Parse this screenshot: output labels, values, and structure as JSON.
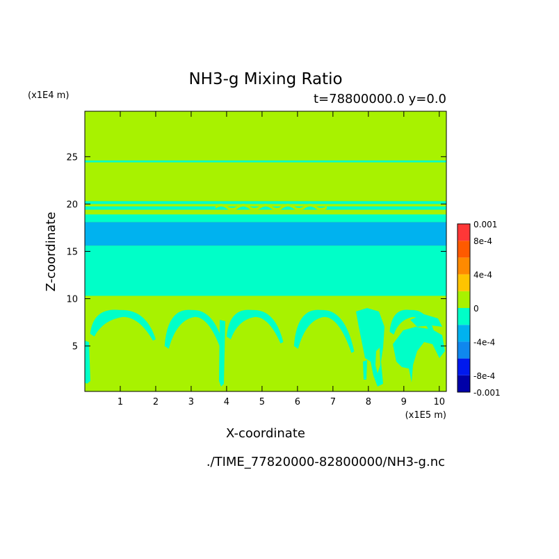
{
  "chart_data": {
    "type": "heatmap",
    "title": "NH3-g Mixing Ratio",
    "subtitle": "t=78800000.0 y=0.0",
    "xlabel": "X-coordinate",
    "ylabel": "Z-coordinate",
    "x_scale_note": "(x1E5 m)",
    "y_scale_note": "(x1E4 m)",
    "footer": "./TIME_77820000-82800000/NH3-g.nc",
    "xlim": [
      0,
      10.2
    ],
    "ylim": [
      0.2,
      29.8
    ],
    "x_ticks": [
      "1",
      "2",
      "3",
      "4",
      "5",
      "6",
      "7",
      "8",
      "9",
      "10"
    ],
    "y_ticks": [
      "5",
      "10",
      "15",
      "20",
      "25"
    ],
    "grid": false,
    "colorbar": {
      "levels": [
        -0.001,
        -0.0008,
        -0.0006,
        -0.0004,
        -0.0002,
        0,
        0.0002,
        0.0004,
        0.0006,
        0.0008,
        0.001
      ],
      "labels": [
        "0.001",
        "8e-4",
        "4e-4",
        "0",
        "-4e-4",
        "-8e-4",
        "-0.001"
      ],
      "colors": [
        "#0000a8",
        "#0019ee",
        "#0f87ee",
        "#00b2ef",
        "#00ffc8",
        "#a8f200",
        "#ffc400",
        "#ff8a00",
        "#ff5a00",
        "#ff3737"
      ]
    },
    "field": {
      "background_color": "#a8f200",
      "horizontal_bands": [
        {
          "z_bottom": 10.3,
          "z_top": 15.6,
          "color": "#00ffc8"
        },
        {
          "z_bottom": 15.6,
          "z_top": 18.1,
          "color": "#00b2ef"
        },
        {
          "z_bottom": 18.1,
          "z_top": 18.9,
          "color": "#00ffc8"
        },
        {
          "z_bottom": 19.4,
          "z_top": 19.75,
          "color": "#00ffc8"
        },
        {
          "z_bottom": 20.0,
          "z_top": 20.3,
          "color": "#00ffc8"
        },
        {
          "z_bottom": 24.4,
          "z_top": 24.6,
          "color": "#00ffc8"
        }
      ],
      "arcs": [
        {
          "x0": 0.15,
          "x1": 2.0,
          "z_base": 6.3,
          "z_peak": 8.8,
          "color": "#00ffc8"
        },
        {
          "x0": 2.25,
          "x1": 3.95,
          "z_base": 5.0,
          "z_peak": 8.8,
          "color": "#00ffc8"
        },
        {
          "x0": 4.0,
          "x1": 5.6,
          "z_base": 6.0,
          "z_peak": 8.8,
          "color": "#00ffc8"
        },
        {
          "x0": 5.9,
          "x1": 7.6,
          "z_base": 5.0,
          "z_peak": 8.8,
          "color": "#00ffc8"
        },
        {
          "x0": 8.6,
          "x1": 9.9,
          "z_base": 6.5,
          "z_peak": 8.8,
          "color": "#00ffc8"
        }
      ]
    }
  }
}
